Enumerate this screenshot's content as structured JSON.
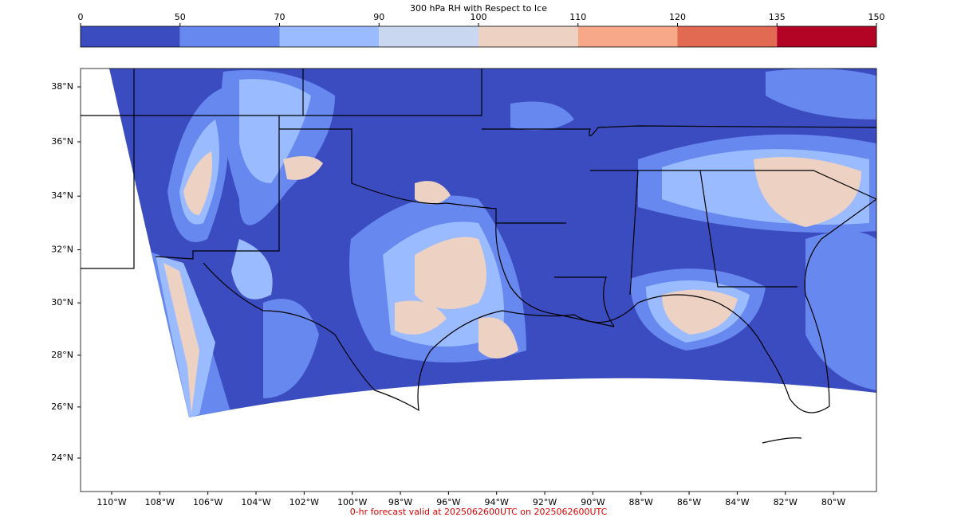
{
  "title": "300 hPa RH with Respect to Ice",
  "colorbar": {
    "ticks": [
      0,
      50,
      70,
      90,
      100,
      110,
      120,
      135,
      150
    ],
    "colors": [
      "#3b4cc0",
      "#6788ee",
      "#9abbff",
      "#c9d7f0",
      "#edd1c2",
      "#f7a889",
      "#e26952",
      "#b40426"
    ]
  },
  "map": {
    "lat_ticks": [
      {
        "value": 38,
        "label": "38°N"
      },
      {
        "value": 36,
        "label": "36°N"
      },
      {
        "value": 34,
        "label": "34°N"
      },
      {
        "value": 32,
        "label": "32°N"
      },
      {
        "value": 30,
        "label": "30°N"
      },
      {
        "value": 28,
        "label": "28°N"
      },
      {
        "value": 26,
        "label": "26°N"
      },
      {
        "value": 24,
        "label": "24°N"
      }
    ],
    "lon_ticks": [
      {
        "value": -110,
        "label": "110°W"
      },
      {
        "value": -108,
        "label": "108°W"
      },
      {
        "value": -106,
        "label": "106°W"
      },
      {
        "value": -104,
        "label": "104°W"
      },
      {
        "value": -102,
        "label": "102°W"
      },
      {
        "value": -100,
        "label": "100°W"
      },
      {
        "value": -98,
        "label": "98°W"
      },
      {
        "value": -96,
        "label": "96°W"
      },
      {
        "value": -94,
        "label": "94°W"
      },
      {
        "value": -92,
        "label": "92°W"
      },
      {
        "value": -90,
        "label": "90°W"
      },
      {
        "value": -88,
        "label": "88°W"
      },
      {
        "value": -86,
        "label": "86°W"
      },
      {
        "value": -84,
        "label": "84°W"
      },
      {
        "value": -82,
        "label": "82°W"
      },
      {
        "value": -80,
        "label": "80°W"
      }
    ]
  },
  "footer": "0-hr forecast valid at 2025062600UTC on 2025062600UTC"
}
